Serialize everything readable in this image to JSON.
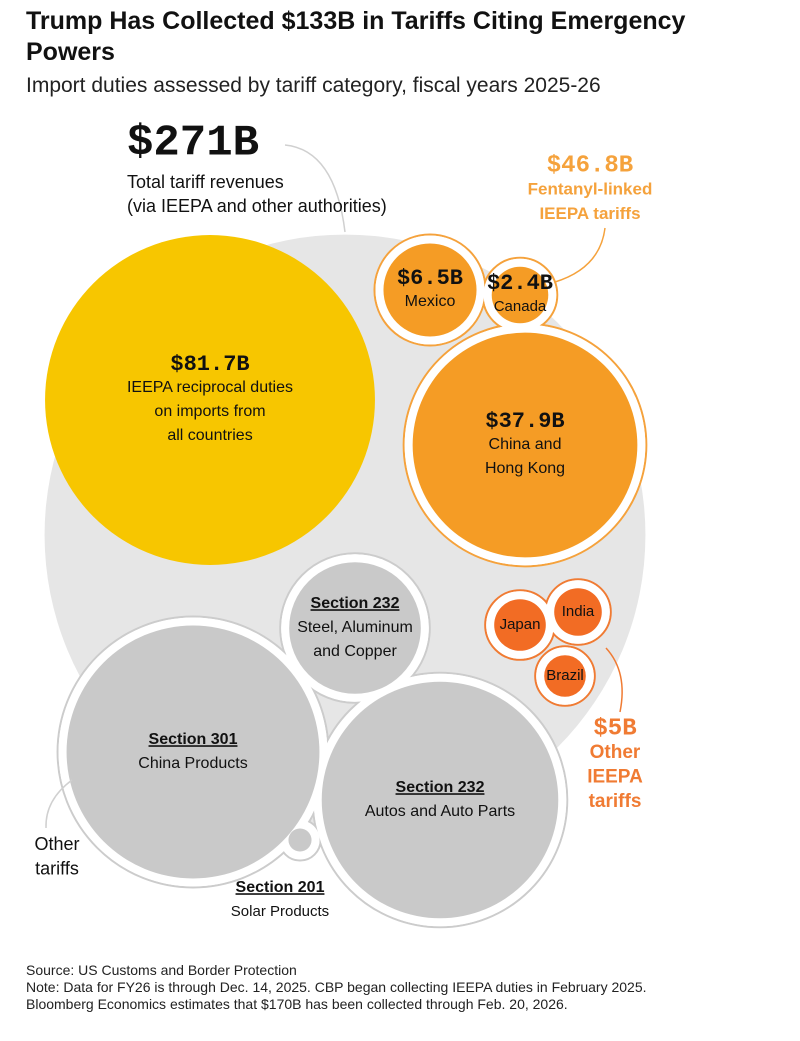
{
  "chart_data": {
    "type": "bubble-pack",
    "title": "Trump Has Collected $133B in Tariffs Citing Emergency Powers",
    "subtitle": "Import duties assessed by tariff category, fiscal years 2025-26",
    "total": {
      "value": 271,
      "value_label": "$271B",
      "label": [
        "Total tariff revenues",
        "(via IEEPA and other authorities)"
      ],
      "color": "#e6e6e6"
    },
    "reciprocal": {
      "value": 81.7,
      "value_label": "$81.7B",
      "label": [
        "IEEPA reciprocal duties",
        "on imports from",
        "all countries"
      ],
      "color": "#f7c600"
    },
    "fentanyl": {
      "name": [
        "Fentanyl-linked",
        "IEEPA tariffs"
      ],
      "value": 46.8,
      "value_label": "$46.8B",
      "color": "#f5a23c",
      "bubbles": [
        {
          "value": 6.5,
          "value_label": "$6.5B",
          "label": [
            "Mexico"
          ],
          "color": "#f59c25"
        },
        {
          "value": 2.4,
          "value_label": "$2.4B",
          "label": [
            "Canada"
          ],
          "color": "#f59c25"
        },
        {
          "value": 37.9,
          "value_label": "$37.9B",
          "label": [
            "China and",
            "Hong Kong"
          ],
          "color": "#f59c25"
        }
      ]
    },
    "other_ieepa": {
      "name": [
        "Other",
        "IEEPA",
        "tariffs"
      ],
      "value": 5,
      "value_label": "$5B",
      "color": "#f07b33",
      "bubbles": [
        {
          "value": 2,
          "label": [
            "Japan"
          ],
          "color": "#f26c24"
        },
        {
          "value": 1.7,
          "label": [
            "India"
          ],
          "color": "#f26c24"
        },
        {
          "value": 1.3,
          "label": [
            "Brazil"
          ],
          "color": "#f26c24"
        }
      ]
    },
    "other_tariffs": {
      "name": [
        "Other",
        "tariffs"
      ],
      "color": "#cccccc",
      "bubbles": [
        {
          "value": 13,
          "name": "Section 232",
          "label": [
            "Steel, Aluminum",
            "and Copper"
          ],
          "color": "#c9c9c9"
        },
        {
          "value": 48,
          "name": "Section 301",
          "label": [
            "China Products"
          ],
          "color": "#c9c9c9"
        },
        {
          "value": 42,
          "name": "Section 232",
          "label": [
            "Autos and Auto Parts"
          ],
          "color": "#c9c9c9"
        },
        {
          "value": 0.4,
          "name": "Section 201",
          "label": [
            "Solar Products"
          ],
          "color": "#c9c9c9"
        }
      ]
    },
    "source": "Source: US Customs and Border Protection",
    "note": [
      "Note: Data for FY26 is through Dec. 14, 2025. CBP began collecting IEEPA duties in February 2025.",
      "Bloomberg Economics estimates that $170B has been collected through Feb. 20, 2026."
    ]
  }
}
